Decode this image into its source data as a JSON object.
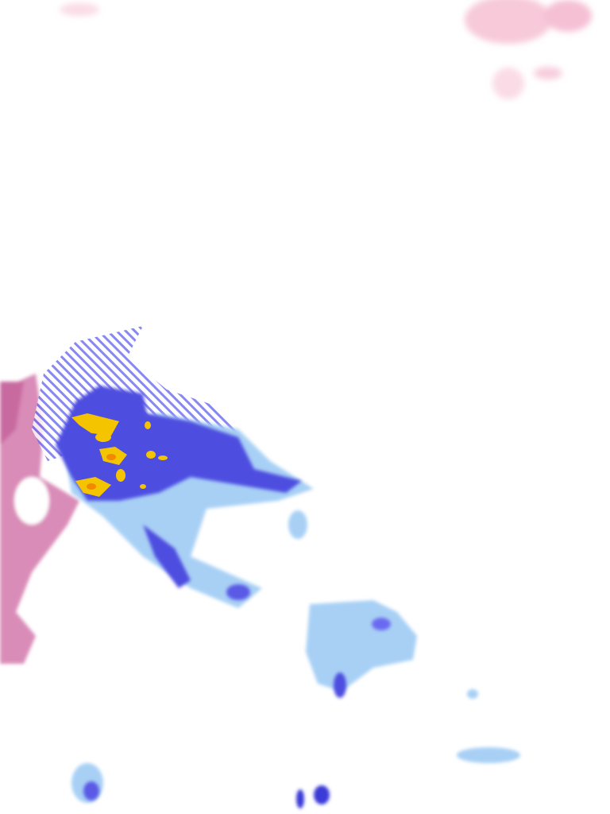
{
  "map": {
    "type": "precipitation-radar-overlay",
    "legend_colors": {
      "mixed_snow": "#d98cb8",
      "light_snow": "#f5c6d8",
      "light_rain": "#a8d0f5",
      "moderate_rain": "#5a5ae6",
      "heavy_rain": "#3a3ad8",
      "intense": "#f5c400",
      "extreme": "#f08a00",
      "hatched_forecast": "#6a6af0"
    }
  }
}
